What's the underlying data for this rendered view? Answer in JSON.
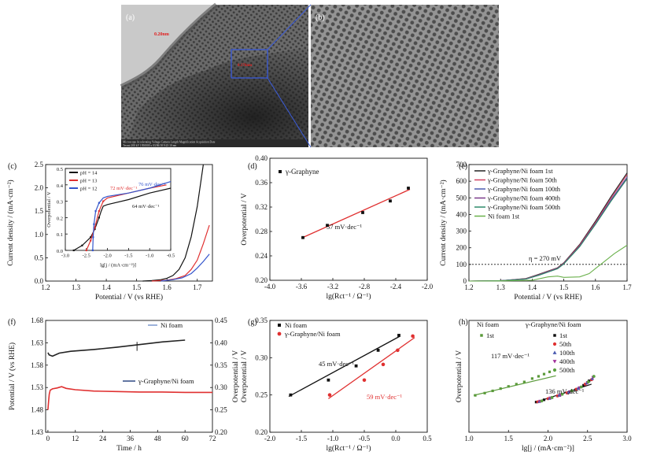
{
  "figure": {
    "panel_labels": [
      "(a)",
      "(b)",
      "(c)",
      "(d)",
      "(e)",
      "(f)",
      "(g)",
      "(h)"
    ],
    "tem": {
      "labels": [
        "0.20nm",
        "0.176nm"
      ],
      "footer_line1": "Microscope Accelerating Voltage Camera Length Magnification Acquisition Date",
      "footer_line2": "Tecnai 200 kV 1950000 x 03/06/18 9:23 10 nm"
    }
  },
  "chart_data": [
    {
      "id": "c",
      "type": "line",
      "xlabel": "Potential / V (vs RHE)",
      "ylabel": "Current density / (mA·cm⁻²)",
      "xlim": [
        1.2,
        1.75
      ],
      "ylim": [
        0,
        2.5
      ],
      "xticks": [
        1.2,
        1.3,
        1.4,
        1.5,
        1.6,
        1.7
      ],
      "yticks": [
        0.0,
        0.5,
        1.0,
        1.5,
        2.0,
        2.5
      ],
      "series": [
        {
          "name": "pH = 14",
          "color": "#111111",
          "x": [
            1.52,
            1.55,
            1.58,
            1.6,
            1.62,
            1.64,
            1.66,
            1.68,
            1.7,
            1.72
          ],
          "y": [
            0.0,
            0.01,
            0.03,
            0.06,
            0.12,
            0.25,
            0.5,
            0.95,
            1.6,
            2.5
          ]
        },
        {
          "name": "pH = 13",
          "color": "#e03030",
          "x": [
            1.55,
            1.6,
            1.63,
            1.66,
            1.68,
            1.7,
            1.72,
            1.74
          ],
          "y": [
            0.0,
            0.02,
            0.05,
            0.12,
            0.25,
            0.45,
            0.8,
            1.2
          ]
        },
        {
          "name": "pH = 12",
          "color": "#3355cc",
          "x": [
            1.58,
            1.62,
            1.65,
            1.68,
            1.7,
            1.72,
            1.74
          ],
          "y": [
            0.0,
            0.03,
            0.07,
            0.16,
            0.28,
            0.42,
            0.58
          ]
        }
      ],
      "inset": {
        "xlabel": "lg[j / (mA·cm⁻²)]",
        "ylabel": "Overpotential / V",
        "xlim": [
          -3.0,
          -0.5
        ],
        "ylim": [
          0,
          0.5
        ],
        "xticks": [
          -3.0,
          -2.5,
          -2.0,
          -1.5,
          -1.0,
          -0.5
        ],
        "yticks": [
          0,
          0.1,
          0.2,
          0.3,
          0.4,
          0.5
        ],
        "annotations": [
          "72 mV·dec⁻¹",
          "76 mV·dec⁻¹",
          "64 mV·dec⁻¹"
        ],
        "series": [
          {
            "name": "pH = 14",
            "color": "#111111",
            "x": [
              -2.8,
              -2.6,
              -2.4,
              -2.3,
              -2.2,
              -2.15,
              -2.1,
              -2.0,
              -1.5,
              -1.0,
              -0.5
            ],
            "y": [
              0.0,
              0.03,
              0.08,
              0.13,
              0.2,
              0.24,
              0.27,
              0.28,
              0.31,
              0.35,
              0.38
            ]
          },
          {
            "name": "pH = 13",
            "color": "#e03030",
            "x": [
              -2.5,
              -2.4,
              -2.3,
              -2.2,
              -2.1,
              -2.0,
              -1.5,
              -1.0,
              -0.6
            ],
            "y": [
              0.0,
              0.06,
              0.14,
              0.24,
              0.3,
              0.32,
              0.35,
              0.38,
              0.4
            ]
          },
          {
            "name": "pH = 12",
            "color": "#3355cc",
            "x": [
              -2.35,
              -2.34,
              -2.32,
              -2.28,
              -2.2,
              -2.1,
              -2.0,
              -1.5,
              -1.0,
              -0.5
            ],
            "y": [
              0.0,
              0.08,
              0.16,
              0.24,
              0.29,
              0.32,
              0.33,
              0.35,
              0.38,
              0.42
            ]
          }
        ]
      }
    },
    {
      "id": "d",
      "type": "scatter",
      "xlabel": "lg(Rct⁻¹ / Ω⁻¹)",
      "ylabel": "Overpotential / V",
      "xlim": [
        -4.0,
        -2.0
      ],
      "ylim": [
        0.2,
        0.4
      ],
      "xticks": [
        -4.0,
        -3.6,
        -3.2,
        -2.8,
        -2.4,
        -2.0
      ],
      "yticks": [
        0.2,
        0.24,
        0.28,
        0.32,
        0.36,
        0.4
      ],
      "series": [
        {
          "name": "γ-Graphyne",
          "color": "#111111",
          "x": [
            -3.58,
            -3.27,
            -2.82,
            -2.47,
            -2.24
          ],
          "y": [
            0.27,
            0.29,
            0.311,
            0.33,
            0.351
          ]
        }
      ],
      "fit": {
        "x": [
          -3.6,
          -2.22
        ],
        "y": [
          0.269,
          0.349
        ],
        "color": "#e03030"
      },
      "annotation": "57 mV·dec⁻¹"
    },
    {
      "id": "e",
      "type": "line",
      "xlabel": "Potential / V (vs RHE)",
      "ylabel": "Current density / (mA·cm⁻²)",
      "xlim": [
        1.2,
        1.7
      ],
      "ylim": [
        0,
        700
      ],
      "xticks": [
        1.2,
        1.3,
        1.4,
        1.5,
        1.6,
        1.7
      ],
      "yticks": [
        0,
        100,
        200,
        300,
        400,
        500,
        600,
        700
      ],
      "hline": 100,
      "annotation": "η = 270 mV",
      "series": [
        {
          "name": "γ-Graphyne/Ni foam 1st",
          "color": "#222222",
          "x": [
            1.2,
            1.3,
            1.38,
            1.42,
            1.45,
            1.48,
            1.5,
            1.55,
            1.6,
            1.65,
            1.7
          ],
          "y": [
            0,
            2,
            15,
            40,
            60,
            80,
            110,
            220,
            360,
            510,
            650
          ]
        },
        {
          "name": "γ-Graphyne/Ni foam 50th",
          "color": "#d04060",
          "x": [
            1.2,
            1.3,
            1.38,
            1.42,
            1.45,
            1.48,
            1.5,
            1.55,
            1.6,
            1.65,
            1.7
          ],
          "y": [
            0,
            2,
            14,
            38,
            58,
            78,
            108,
            215,
            352,
            500,
            640
          ]
        },
        {
          "name": "γ-Graphyne/Ni foam 100th",
          "color": "#4a5ab0",
          "x": [
            1.2,
            1.3,
            1.38,
            1.42,
            1.45,
            1.48,
            1.5,
            1.55,
            1.6,
            1.65,
            1.7
          ],
          "y": [
            0,
            2,
            13,
            36,
            56,
            76,
            105,
            210,
            345,
            490,
            625
          ]
        },
        {
          "name": "γ-Graphyne/Ni foam 400th",
          "color": "#7a3a8a",
          "x": [
            1.2,
            1.3,
            1.38,
            1.42,
            1.45,
            1.48,
            1.5,
            1.55,
            1.6,
            1.65,
            1.7
          ],
          "y": [
            0,
            2,
            12,
            35,
            55,
            75,
            104,
            208,
            342,
            485,
            620
          ]
        },
        {
          "name": "γ-Graphyne/Ni foam 500th",
          "color": "#2f8a6a",
          "x": [
            1.2,
            1.3,
            1.38,
            1.42,
            1.45,
            1.48,
            1.5,
            1.55,
            1.6,
            1.65,
            1.7
          ],
          "y": [
            0,
            2,
            12,
            34,
            54,
            74,
            103,
            206,
            340,
            482,
            615
          ]
        },
        {
          "name": "Ni foam 1st",
          "color": "#6ab04c",
          "x": [
            1.2,
            1.3,
            1.4,
            1.45,
            1.48,
            1.5,
            1.55,
            1.58,
            1.6,
            1.63,
            1.66,
            1.7
          ],
          "y": [
            0,
            1,
            5,
            25,
            30,
            22,
            25,
            45,
            75,
            120,
            165,
            215
          ]
        }
      ]
    },
    {
      "id": "f",
      "type": "line",
      "xlabel": "Time / h",
      "ylabel": "Potential / V (vs RHE)",
      "ylabel2": "Overpotential / V",
      "xlim": [
        -1,
        72
      ],
      "ylim": [
        1.43,
        1.68
      ],
      "ylim2": [
        0.2,
        0.45
      ],
      "xticks": [
        0,
        12,
        24,
        36,
        48,
        60,
        72
      ],
      "yticks": [
        1.43,
        1.48,
        1.53,
        1.58,
        1.63,
        1.68
      ],
      "yticks2": [
        0.2,
        0.25,
        0.3,
        0.35,
        0.4,
        0.45
      ],
      "series": [
        {
          "name": "Ni foam",
          "color": "#222222",
          "x": [
            0,
            0.5,
            2,
            5,
            10,
            20,
            30,
            40,
            50,
            60
          ],
          "y": [
            1.608,
            1.603,
            1.6,
            1.607,
            1.611,
            1.615,
            1.62,
            1.626,
            1.632,
            1.636
          ]
        },
        {
          "name": "γ-Graphyne/Ni foam",
          "color": "#e03030",
          "x": [
            0,
            0.3,
            0.6,
            1,
            2,
            4,
            6,
            8,
            12,
            20,
            30,
            40,
            50,
            60,
            72
          ],
          "y": [
            1.48,
            1.5,
            1.515,
            1.524,
            1.527,
            1.529,
            1.532,
            1.528,
            1.525,
            1.522,
            1.521,
            1.52,
            1.52,
            1.519,
            1.519
          ]
        }
      ]
    },
    {
      "id": "g",
      "type": "scatter",
      "xlabel": "lg(Rct⁻¹ / Ω⁻¹)",
      "ylabel": "Overpotential / V",
      "xlim": [
        -2.0,
        0.5
      ],
      "ylim": [
        0.2,
        0.35
      ],
      "xticks": [
        -2.0,
        -1.5,
        -1.0,
        -0.5,
        0.0,
        0.5
      ],
      "yticks": [
        0.2,
        0.25,
        0.3,
        0.35
      ],
      "annotations": [
        "45 mV·dec⁻¹",
        "59 mV·dec⁻¹"
      ],
      "series": [
        {
          "name": "Ni foam",
          "color": "#111111",
          "x": [
            -1.67,
            -1.07,
            -0.63,
            -0.28,
            0.05
          ],
          "y": [
            0.25,
            0.27,
            0.289,
            0.31,
            0.33
          ],
          "fit": {
            "x": [
              -1.7,
              0.07
            ],
            "y": [
              0.248,
              0.329
            ]
          }
        },
        {
          "name": "γ-Graphyne/Ni foam",
          "color": "#e03030",
          "x": [
            -1.05,
            -0.5,
            -0.2,
            0.03,
            0.27
          ],
          "y": [
            0.25,
            0.27,
            0.291,
            0.31,
            0.329
          ],
          "fit": {
            "x": [
              -1.07,
              0.3
            ],
            "y": [
              0.245,
              0.327
            ]
          }
        }
      ]
    },
    {
      "id": "h",
      "type": "scatter",
      "xlabel": "lg[j / (mA·cm⁻²)]",
      "ylabel": "Overpotential / V",
      "xlim": [
        1.0,
        3.0
      ],
      "xticks": [
        1.0,
        1.5,
        2.0,
        2.5,
        3.0
      ],
      "ylim": [
        0,
        1
      ],
      "legend_titles": [
        "Ni foam",
        "γ-Graphyne/Ni foam"
      ],
      "annotations": [
        "117 mV·dec⁻¹",
        "136 mV·dec⁻¹"
      ],
      "series": [
        {
          "name": "1st",
          "group": "Ni foam",
          "color": "#5a9a3a",
          "x": [
            1.08,
            1.2,
            1.3,
            1.4,
            1.5,
            1.6,
            1.7,
            1.8,
            1.88,
            1.95,
            2.02
          ],
          "y": [
            0.33,
            0.35,
            0.37,
            0.39,
            0.41,
            0.43,
            0.45,
            0.48,
            0.5,
            0.52,
            0.54
          ],
          "fit": {
            "x": [
              1.06,
              2.1
            ],
            "y": [
              0.33,
              0.505
            ]
          }
        },
        {
          "name": "1st",
          "group": "γ-Graphyne/Ni foam",
          "color": "#111111",
          "x": [
            1.85,
            1.95,
            2.05,
            2.15,
            2.25,
            2.35,
            2.45,
            2.52
          ],
          "y": [
            0.27,
            0.29,
            0.31,
            0.33,
            0.35,
            0.38,
            0.42,
            0.46
          ],
          "fit": {
            "x": [
              1.84,
              2.55
            ],
            "y": [
              0.268,
              0.43
            ]
          }
        },
        {
          "name": "50th",
          "group": "γ-Graphyne/Ni foam",
          "color": "#e03030",
          "x": [
            1.87,
            2.0,
            2.12,
            2.24,
            2.36,
            2.47,
            2.55
          ],
          "y": [
            0.272,
            0.3,
            0.325,
            0.352,
            0.385,
            0.43,
            0.47
          ]
        },
        {
          "name": "100th",
          "group": "γ-Graphyne/Ni foam",
          "color": "#4a5ab0",
          "x": [
            1.89,
            2.02,
            2.14,
            2.26,
            2.38,
            2.49,
            2.56
          ],
          "y": [
            0.275,
            0.303,
            0.33,
            0.358,
            0.392,
            0.44,
            0.48
          ]
        },
        {
          "name": "400th",
          "group": "γ-Graphyne/Ni foam",
          "color": "#a0309a",
          "x": [
            1.9,
            2.03,
            2.16,
            2.28,
            2.4,
            2.5,
            2.57
          ],
          "y": [
            0.277,
            0.306,
            0.334,
            0.363,
            0.398,
            0.445,
            0.49
          ]
        },
        {
          "name": "500th",
          "group": "γ-Graphyne/Ni foam",
          "color": "#5aa040",
          "x": [
            1.92,
            2.05,
            2.18,
            2.3,
            2.42,
            2.51,
            2.58
          ],
          "y": [
            0.28,
            0.31,
            0.34,
            0.37,
            0.405,
            0.45,
            0.5
          ]
        }
      ]
    }
  ]
}
